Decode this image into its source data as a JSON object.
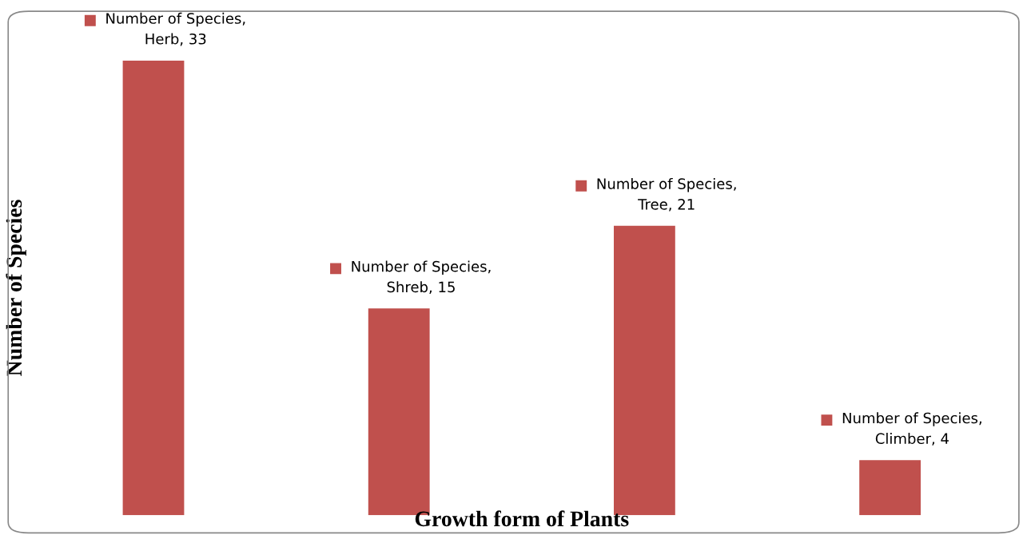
{
  "chart_data": {
    "type": "bar",
    "xlabel": "Growth form of Plants",
    "ylabel": "Number of Species",
    "categories": [
      null,
      null,
      null,
      null
    ],
    "series": [
      {
        "color": "#c0504d",
        "values": [
          33,
          15,
          21,
          4
        ],
        "value_labels": [
          "Number of Species, Herb, 33",
          "Number of Species, Shreb, 15",
          "Number of Species, Tree, 21",
          "Number of Species, Climber, 4"
        ]
      }
    ],
    "tick_labels": false,
    "grid": false,
    "legend": false
  }
}
